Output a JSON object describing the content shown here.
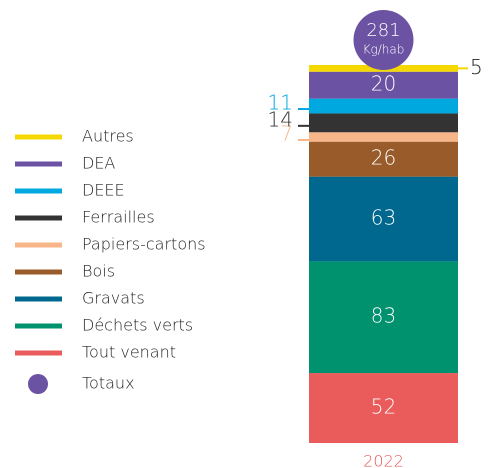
{
  "chart_data": {
    "type": "stacked_bar",
    "categories": [
      "2022"
    ],
    "series": [
      {
        "name": "Autres",
        "color": "#f5d800",
        "values": [
          5
        ]
      },
      {
        "name": "DEA",
        "color": "#6b52a3",
        "values": [
          20
        ]
      },
      {
        "name": "DEEE",
        "color": "#00a8e0",
        "values": [
          11
        ]
      },
      {
        "name": "Ferrailles",
        "color": "#333333",
        "values": [
          14
        ]
      },
      {
        "name": "Papiers-cartons",
        "color": "#f7b68a",
        "values": [
          7
        ]
      },
      {
        "name": "Bois",
        "color": "#9a5b2a",
        "values": [
          26
        ]
      },
      {
        "name": "Gravats",
        "color": "#00688f",
        "values": [
          63
        ]
      },
      {
        "name": "Déchets verts",
        "color": "#00916e",
        "values": [
          83
        ]
      },
      {
        "name": "Tout venant",
        "color": "#ea5b5b",
        "values": [
          52
        ]
      }
    ],
    "total": 281,
    "total_unit": "Kg/hab",
    "total_label": "Totaux",
    "total_color": "#6b52a3",
    "category_color": "#e35a5a"
  }
}
